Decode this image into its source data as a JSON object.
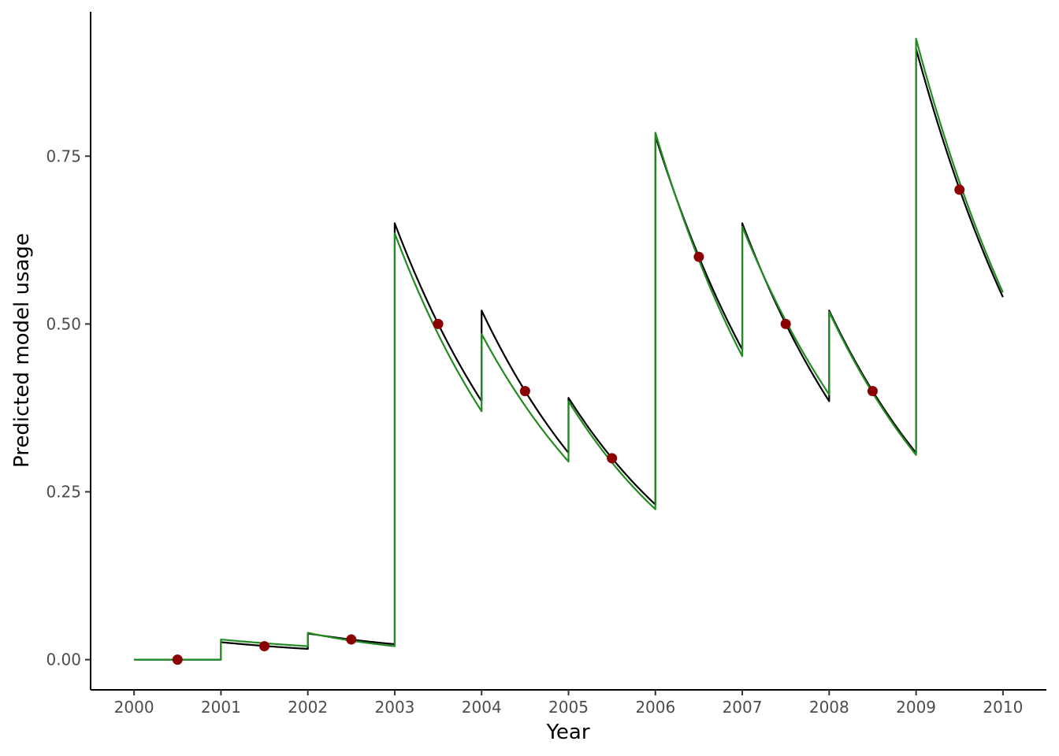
{
  "chart_data": {
    "type": "line",
    "title": "",
    "xlabel": "Year",
    "ylabel": "Predicted model usage",
    "xlim": [
      1999.5,
      2010.5
    ],
    "ylim": [
      -0.045,
      0.965
    ],
    "x_ticks": [
      2000,
      2001,
      2002,
      2003,
      2004,
      2005,
      2006,
      2007,
      2008,
      2009,
      2010
    ],
    "y_ticks": [
      0,
      0.25,
      0.5,
      0.75
    ],
    "y_tick_labels": [
      "0.00",
      "0.25",
      "0.50",
      "0.75"
    ],
    "grid": false,
    "legend": "none",
    "series": [
      {
        "style": "line",
        "color": "#000000",
        "segments": [
          {
            "x": [
              2000,
              2001
            ],
            "y": [
              0.0,
              0.0
            ]
          },
          {
            "x": [
              2001,
              2002
            ],
            "y": [
              0.026,
              0.016
            ]
          },
          {
            "x": [
              2002,
              2003
            ],
            "y": [
              0.039,
              0.023
            ]
          },
          {
            "x": [
              2003,
              2004
            ],
            "y": [
              0.65,
              0.385
            ]
          },
          {
            "x": [
              2004,
              2005
            ],
            "y": [
              0.52,
              0.308
            ]
          },
          {
            "x": [
              2005,
              2006
            ],
            "y": [
              0.39,
              0.231
            ]
          },
          {
            "x": [
              2006,
              2007
            ],
            "y": [
              0.78,
              0.462
            ]
          },
          {
            "x": [
              2007,
              2008
            ],
            "y": [
              0.65,
              0.385
            ]
          },
          {
            "x": [
              2008,
              2009
            ],
            "y": [
              0.52,
              0.308
            ]
          },
          {
            "x": [
              2009,
              2010
            ],
            "y": [
              0.91,
              0.54
            ]
          }
        ]
      },
      {
        "style": "line",
        "color": "#228b22",
        "segments": [
          {
            "x": [
              2000,
              2001
            ],
            "y": [
              0.0,
              0.0
            ]
          },
          {
            "x": [
              2001,
              2002
            ],
            "y": [
              0.03,
              0.02
            ]
          },
          {
            "x": [
              2002,
              2003
            ],
            "y": [
              0.04,
              0.02
            ]
          },
          {
            "x": [
              2003,
              2004
            ],
            "y": [
              0.635,
              0.37
            ]
          },
          {
            "x": [
              2004,
              2005
            ],
            "y": [
              0.485,
              0.295
            ]
          },
          {
            "x": [
              2005,
              2006
            ],
            "y": [
              0.385,
              0.224
            ]
          },
          {
            "x": [
              2006,
              2007
            ],
            "y": [
              0.785,
              0.452
            ]
          },
          {
            "x": [
              2007,
              2008
            ],
            "y": [
              0.645,
              0.395
            ]
          },
          {
            "x": [
              2008,
              2009
            ],
            "y": [
              0.518,
              0.305
            ]
          },
          {
            "x": [
              2009,
              2010
            ],
            "y": [
              0.925,
              0.547
            ]
          }
        ]
      },
      {
        "style": "points",
        "color": "#8b0000",
        "x": [
          2000.5,
          2001.5,
          2002.5,
          2003.5,
          2004.5,
          2005.5,
          2006.5,
          2007.5,
          2008.5,
          2009.5
        ],
        "y": [
          0.0,
          0.02,
          0.03,
          0.5,
          0.4,
          0.3,
          0.6,
          0.5,
          0.4,
          0.7
        ]
      }
    ]
  }
}
